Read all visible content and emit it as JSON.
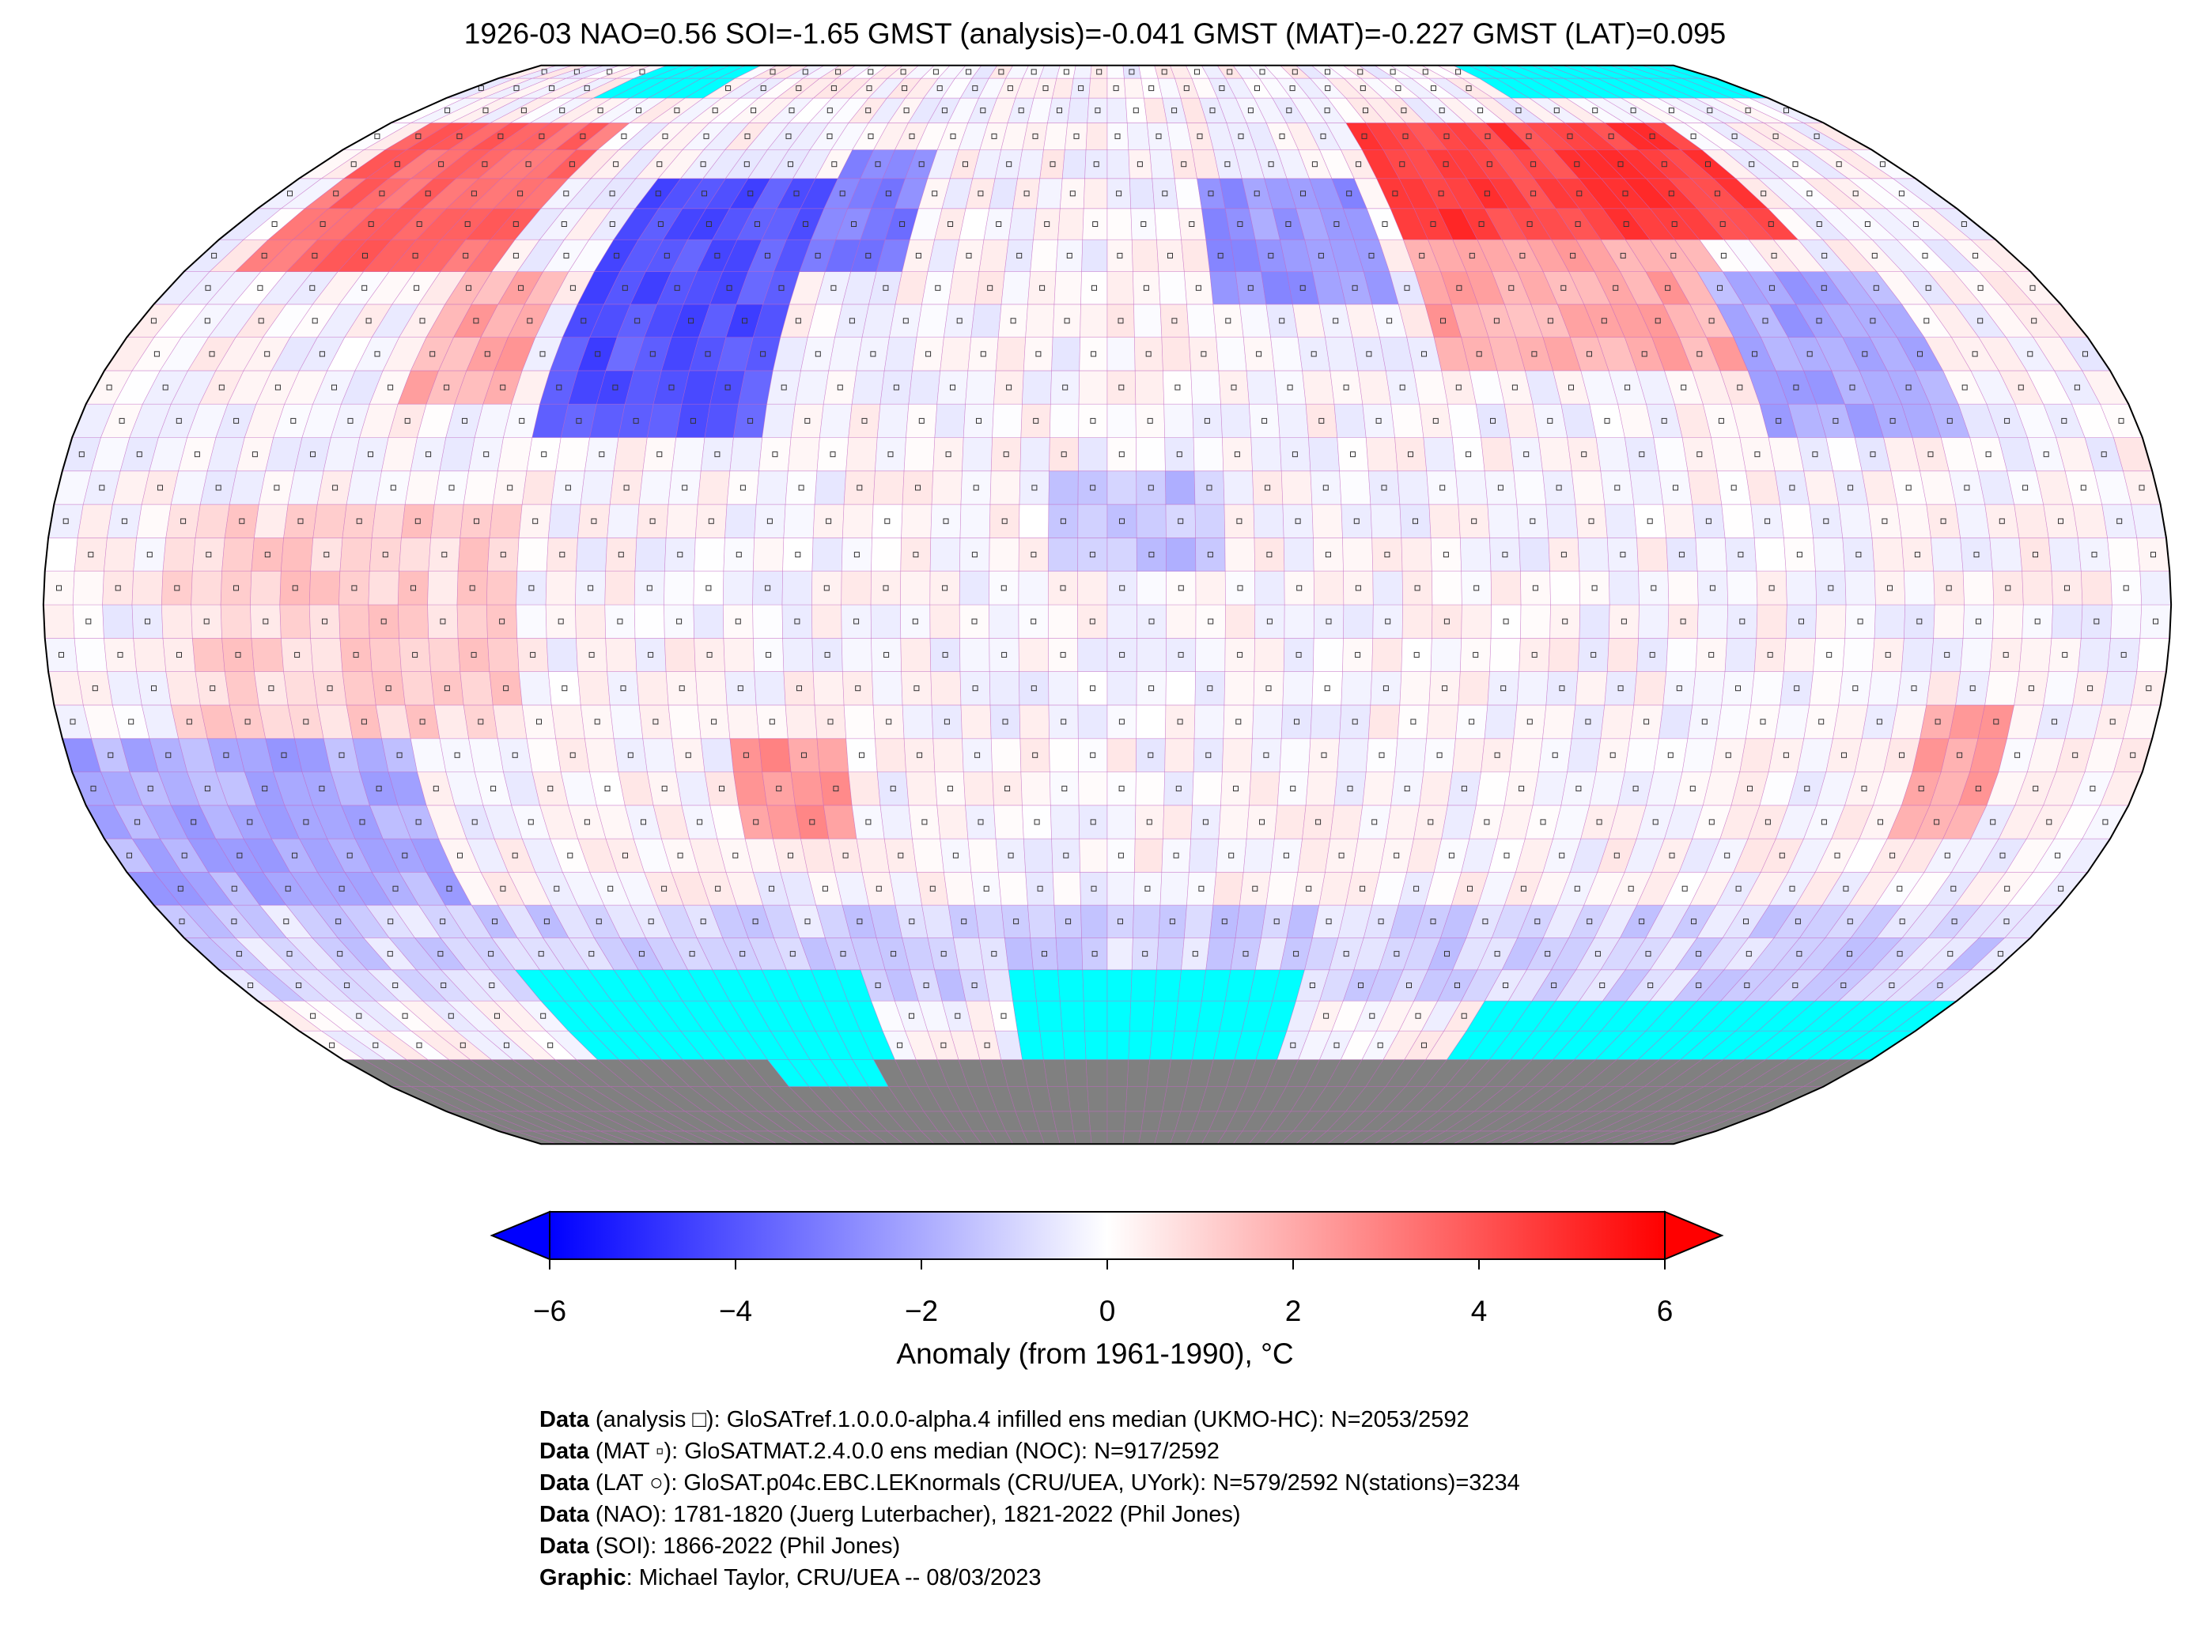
{
  "title": "1926-03 NAO=0.56 SOI=-1.65 GMST (analysis)=-0.041 GMST (MAT)=-0.227 GMST (LAT)=0.095",
  "colors": {
    "min": "#0000ff",
    "mid": "#ffffff",
    "max": "#ff0000",
    "missing": "#00ffff",
    "land_ice": "#808080",
    "grid": "#c060c0"
  },
  "chart_data": {
    "type": "heatmap",
    "projection": "Robinson",
    "grid_resolution_deg": 5,
    "colorbar": {
      "label": "Anomaly (from 1961-1990), °C",
      "range": [
        -6,
        6
      ],
      "ticks": [
        "−6",
        "−4",
        "−2",
        "0",
        "2",
        "4",
        "6"
      ],
      "tick_values": [
        -6,
        -4,
        -2,
        0,
        2,
        4,
        6
      ],
      "extend": "both"
    },
    "anomaly_regions": [
      {
        "lon": [
          -170,
          -120
        ],
        "lat": [
          50,
          75
        ],
        "value": 3.5
      },
      {
        "lon": [
          -125,
          -105
        ],
        "lat": [
          30,
          50
        ],
        "value": 2.0
      },
      {
        "lon": [
          -100,
          -60
        ],
        "lat": [
          25,
          65
        ],
        "value": -4.0
      },
      {
        "lon": [
          -60,
          -40
        ],
        "lat": [
          50,
          70
        ],
        "value": -3.0
      },
      {
        "lon": [
          60,
          140
        ],
        "lat": [
          55,
          75
        ],
        "value": 4.5
      },
      {
        "lon": [
          60,
          120
        ],
        "lat": [
          35,
          55
        ],
        "value": 2.0
      },
      {
        "lon": [
          20,
          55
        ],
        "lat": [
          45,
          65
        ],
        "value": -2.5
      },
      {
        "lon": [
          115,
          150
        ],
        "lat": [
          25,
          50
        ],
        "value": -2.0
      },
      {
        "lon": [
          -65,
          -45
        ],
        "lat": [
          -35,
          -20
        ],
        "value": 2.5
      },
      {
        "lon": [
          -180,
          -120
        ],
        "lat": [
          -45,
          -20
        ],
        "value": -2.0
      },
      {
        "lon": [
          -160,
          -100
        ],
        "lat": [
          -20,
          15
        ],
        "value": 1.0
      },
      {
        "lon": [
          -10,
          20
        ],
        "lat": [
          5,
          20
        ],
        "value": -1.5
      },
      {
        "lon": [
          140,
          155
        ],
        "lat": [
          -35,
          -15
        ],
        "value": 2.0
      },
      {
        "lon": [
          -180,
          180
        ],
        "lat": [
          -60,
          -45
        ],
        "value": -1.0
      }
    ],
    "missing_regions": [
      {
        "lon": [
          -180,
          180
        ],
        "lat": [
          -90,
          -70
        ]
      },
      {
        "lon": [
          -120,
          -50
        ],
        "lat": [
          -70,
          -55
        ]
      },
      {
        "lon": [
          -20,
          40
        ],
        "lat": [
          -70,
          -55
        ]
      },
      {
        "lon": [
          80,
          180
        ],
        "lat": [
          -70,
          -60
        ]
      },
      {
        "lon": [
          -140,
          -110
        ],
        "lat": [
          80,
          90
        ]
      },
      {
        "lon": [
          110,
          180
        ],
        "lat": [
          80,
          90
        ]
      }
    ]
  },
  "footer": [
    {
      "bold": "Data",
      "text": " (analysis □): GloSATref.1.0.0.0-alpha.4 infilled ens median (UKMO-HC): N=2053/2592"
    },
    {
      "bold": "Data",
      "text": " (MAT ▫): GloSATMAT.2.4.0.0 ens median (NOC): N=917/2592"
    },
    {
      "bold": "Data",
      "text": " (LAT ○): GloSAT.p04c.EBC.LEKnormals (CRU/UEA, UYork): N=579/2592 N(stations)=3234"
    },
    {
      "bold": "Data",
      "text": " (NAO): 1781-1820 (Juerg Luterbacher), 1821-2022 (Phil Jones)"
    },
    {
      "bold": "Data",
      "text": " (SOI): 1866-2022 (Phil Jones)"
    },
    {
      "bold": "Graphic",
      "text": ": Michael Taylor, CRU/UEA -- 08/03/2023"
    }
  ]
}
